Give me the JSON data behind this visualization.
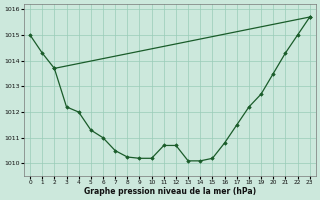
{
  "xlabel": "Graphe pression niveau de la mer (hPa)",
  "xlim": [
    -0.5,
    23.5
  ],
  "ylim": [
    1009.5,
    1016.2
  ],
  "xticks": [
    0,
    1,
    2,
    3,
    4,
    5,
    6,
    7,
    8,
    9,
    10,
    11,
    12,
    13,
    14,
    15,
    16,
    17,
    18,
    19,
    20,
    21,
    22,
    23
  ],
  "yticks": [
    1010,
    1011,
    1012,
    1013,
    1014,
    1015,
    1016
  ],
  "background_color": "#cce8dc",
  "grid_color": "#99ccb8",
  "line_color": "#1a5c2a",
  "line1_x": [
    0,
    1,
    2,
    3,
    4,
    5,
    6,
    7,
    8,
    9,
    10,
    11,
    12,
    13,
    14,
    15,
    16,
    17,
    18,
    19,
    20,
    21,
    22,
    23
  ],
  "line1_y": [
    1015.0,
    1014.3,
    1013.7,
    1012.2,
    1012.0,
    1011.3,
    1011.0,
    1010.5,
    1010.25,
    1010.2,
    1010.2,
    1010.7,
    1010.7,
    1010.1,
    1010.1,
    1010.2,
    1010.8,
    1011.5,
    1012.2,
    1012.7,
    1013.5,
    1014.3,
    1015.0,
    1015.7
  ],
  "line2_x": [
    2,
    23
  ],
  "line2_y": [
    1013.7,
    1015.7
  ]
}
